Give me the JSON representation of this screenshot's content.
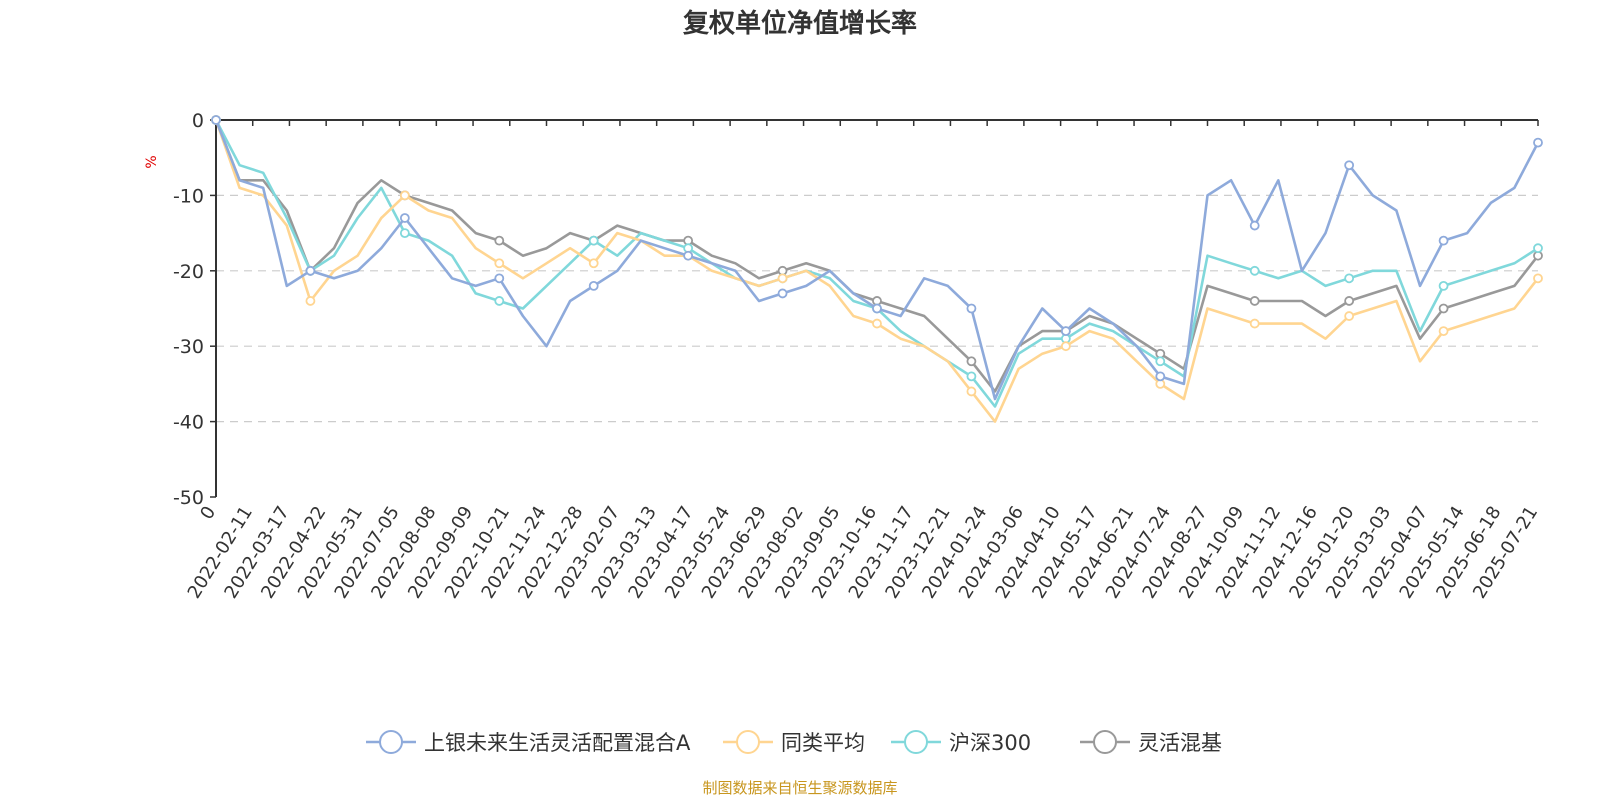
{
  "chart_data": {
    "type": "line",
    "title": "复权单位净值增长率",
    "ylabel": "%",
    "ylim": [
      -50,
      0
    ],
    "yticks": [
      0,
      -10,
      -20,
      -30,
      -40,
      -50
    ],
    "grid": true,
    "legend_position": "bottom",
    "x_tick_labels": [
      "0",
      "2022-02-11",
      "2022-03-17",
      "2022-04-22",
      "2022-05-31",
      "2022-07-05",
      "2022-08-08",
      "2022-09-09",
      "2022-10-21",
      "2022-11-24",
      "2022-12-28",
      "2023-02-07",
      "2023-03-13",
      "2023-04-17",
      "2023-05-24",
      "2023-06-29",
      "2023-08-02",
      "2023-09-05",
      "2023-10-16",
      "2023-11-17",
      "2023-12-21",
      "2024-01-24",
      "2024-03-06",
      "2024-04-10",
      "2024-05-17",
      "2024-06-21",
      "2024-07-24",
      "2024-08-27",
      "2024-10-09",
      "2024-11-12",
      "2024-12-16",
      "2025-01-20",
      "2025-03-03",
      "2025-04-07",
      "2025-05-14",
      "2025-06-18",
      "2025-07-21"
    ],
    "series": [
      {
        "name": "上银未来生活灵活配置混合A",
        "color": "#8eaadb",
        "values": [
          0,
          -8,
          -9,
          -22,
          -20,
          -21,
          -20,
          -17,
          -13,
          -17,
          -21,
          -22,
          -21,
          -26,
          -30,
          -24,
          -22,
          -20,
          -16,
          -17,
          -18,
          -19,
          -20,
          -24,
          -23,
          -22,
          -20,
          -23,
          -25,
          -26,
          -21,
          -22,
          -25,
          -37,
          -30,
          -25,
          -28,
          -25,
          -27,
          -30,
          -34,
          -35,
          -10,
          -8,
          -14,
          -8,
          -20,
          -15,
          -6,
          -10,
          -12,
          -22,
          -16,
          -15,
          -11,
          -9,
          -3
        ]
      },
      {
        "name": "同类平均",
        "color": "#ffd591",
        "values": [
          0,
          -9,
          -10,
          -14,
          -24,
          -20,
          -18,
          -13,
          -10,
          -12,
          -13,
          -17,
          -19,
          -21,
          -19,
          -17,
          -19,
          -15,
          -16,
          -18,
          -18,
          -20,
          -21,
          -22,
          -21,
          -20,
          -22,
          -26,
          -27,
          -29,
          -30,
          -32,
          -36,
          -40,
          -33,
          -31,
          -30,
          -28,
          -29,
          -32,
          -35,
          -37,
          -25,
          -26,
          -27,
          -27,
          -27,
          -29,
          -26,
          -25,
          -24,
          -32,
          -28,
          -27,
          -26,
          -25,
          -21
        ]
      },
      {
        "name": "沪深300",
        "color": "#80d8db",
        "values": [
          0,
          -6,
          -7,
          -13,
          -20,
          -18,
          -13,
          -9,
          -15,
          -16,
          -18,
          -23,
          -24,
          -25,
          -22,
          -19,
          -16,
          -18,
          -15,
          -16,
          -17,
          -19,
          -21,
          -22,
          -21,
          -20,
          -21,
          -24,
          -25,
          -28,
          -30,
          -32,
          -34,
          -38,
          -31,
          -29,
          -29,
          -27,
          -28,
          -30,
          -32,
          -34,
          -18,
          -19,
          -20,
          -21,
          -20,
          -22,
          -21,
          -20,
          -20,
          -28,
          -22,
          -21,
          -20,
          -19,
          -17
        ]
      },
      {
        "name": "灵活混基",
        "color": "#999999",
        "values": [
          0,
          -8,
          -8,
          -12,
          -20,
          -17,
          -11,
          -8,
          -10,
          -11,
          -12,
          -15,
          -16,
          -18,
          -17,
          -15,
          -16,
          -14,
          -15,
          -16,
          -16,
          -18,
          -19,
          -21,
          -20,
          -19,
          -20,
          -23,
          -24,
          -25,
          -26,
          -29,
          -32,
          -36,
          -30,
          -28,
          -28,
          -26,
          -27,
          -29,
          -31,
          -33,
          -22,
          -23,
          -24,
          -24,
          -24,
          -26,
          -24,
          -23,
          -22,
          -29,
          -25,
          -24,
          -23,
          -22,
          -18
        ]
      }
    ],
    "source_note": "制图数据来自恒生聚源数据库"
  }
}
